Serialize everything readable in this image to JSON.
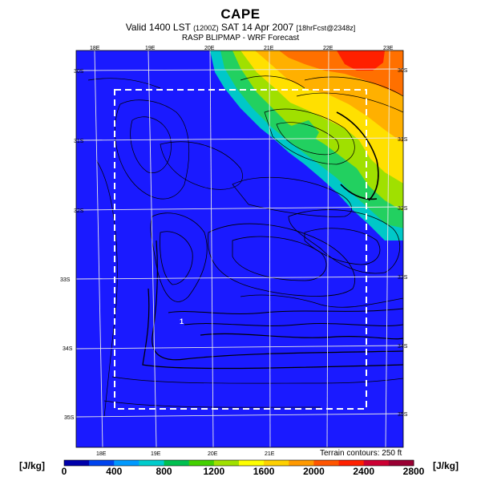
{
  "header": {
    "title": "CAPE",
    "subtitle_main": "Valid 1400 LST",
    "subtitle_utc": "(1200Z)",
    "subtitle_date": "SAT 14 Apr 2007",
    "subtitle_fcst": "[18hrFcst@2348z]",
    "model": "RASP BLIPMAP - WRF Forecast"
  },
  "map": {
    "lon_labels_top": [
      "18E",
      "19E",
      "20E",
      "21E",
      "22E",
      "23E"
    ],
    "lon_labels_bottom": [
      "18E",
      "19E",
      "20E",
      "21E"
    ],
    "lat_labels_right": [
      "30S",
      "31S",
      "32S",
      "33S",
      "34S",
      "35S"
    ],
    "lat_labels_left": [
      "30S",
      "31S",
      "32S",
      "33S",
      "34S",
      "35S"
    ],
    "marker_label": "1",
    "terrain_note": "Terrain contours: 250 ft",
    "colors": {
      "background_field": "#1a1aff",
      "high_cape": [
        "#00c8c8",
        "#22d060",
        "#a0e000",
        "#ffe000",
        "#ffb000",
        "#ff7000",
        "#ff2000"
      ]
    }
  },
  "colorbar": {
    "unit_label": "[J/kg]",
    "tick_labels": [
      "0",
      "400",
      "800",
      "1200",
      "1600",
      "2000",
      "2400",
      "2800"
    ],
    "colors": [
      "#0000aa",
      "#0044ee",
      "#0099ff",
      "#00cccc",
      "#00c050",
      "#44d000",
      "#a0e000",
      "#ffff00",
      "#ffd000",
      "#ff9900",
      "#ff5500",
      "#ff2000",
      "#cc0033",
      "#990033"
    ]
  }
}
